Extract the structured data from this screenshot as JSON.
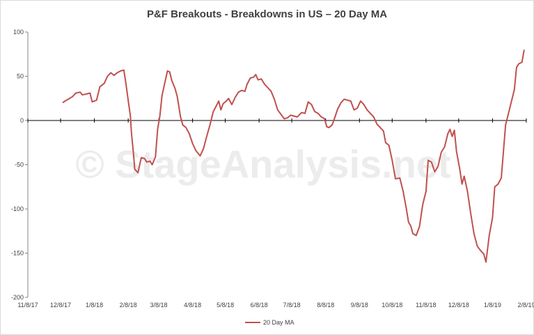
{
  "watermark": "© StageAnalysis.net",
  "chart_data": {
    "type": "line",
    "title": "P&F Breakouts - Breakdowns in US – 20 Day MA",
    "xlabel": "",
    "ylabel": "",
    "ylim": [
      -200,
      100
    ],
    "yticks": [
      100,
      50,
      0,
      -50,
      -100,
      -150,
      -200
    ],
    "xlim": [
      "2017-11-08",
      "2019-02-08"
    ],
    "xticks": [
      "11/8/17",
      "12/8/17",
      "1/8/18",
      "2/8/18",
      "3/8/18",
      "4/8/18",
      "5/8/18",
      "6/8/18",
      "7/8/18",
      "8/8/18",
      "9/8/18",
      "10/8/18",
      "11/8/18",
      "12/8/18",
      "1/8/19",
      "2/8/19"
    ],
    "grid": false,
    "legend": "bottom",
    "colors": {
      "series": "#c0504d",
      "axis": "#000000"
    },
    "series": [
      {
        "name": "20 Day MA",
        "points": [
          [
            "2017-12-10",
            20
          ],
          [
            "2017-12-12",
            22
          ],
          [
            "2017-12-15",
            24
          ],
          [
            "2017-12-19",
            27
          ],
          [
            "2017-12-22",
            31
          ],
          [
            "2017-12-26",
            32
          ],
          [
            "2017-12-28",
            29
          ],
          [
            "2018-01-01",
            30
          ],
          [
            "2018-01-04",
            31
          ],
          [
            "2018-01-06",
            21
          ],
          [
            "2018-01-10",
            23
          ],
          [
            "2018-01-13",
            38
          ],
          [
            "2018-01-17",
            42
          ],
          [
            "2018-01-20",
            50
          ],
          [
            "2018-01-23",
            54
          ],
          [
            "2018-01-26",
            51
          ],
          [
            "2018-01-29",
            54
          ],
          [
            "2018-02-01",
            56
          ],
          [
            "2018-02-04",
            57
          ],
          [
            "2018-02-06",
            41
          ],
          [
            "2018-02-08",
            23
          ],
          [
            "2018-02-10",
            5
          ],
          [
            "2018-02-11",
            -14
          ],
          [
            "2018-02-13",
            -40
          ],
          [
            "2018-02-14",
            -55
          ],
          [
            "2018-02-17",
            -59
          ],
          [
            "2018-02-20",
            -42
          ],
          [
            "2018-02-23",
            -43
          ],
          [
            "2018-02-25",
            -47
          ],
          [
            "2018-02-28",
            -46
          ],
          [
            "2018-03-02",
            -50
          ],
          [
            "2018-03-05",
            -41
          ],
          [
            "2018-03-07",
            -10
          ],
          [
            "2018-03-09",
            5
          ],
          [
            "2018-03-11",
            28
          ],
          [
            "2018-03-14",
            45
          ],
          [
            "2018-03-16",
            56
          ],
          [
            "2018-03-18",
            55
          ],
          [
            "2018-03-20",
            45
          ],
          [
            "2018-03-23",
            36
          ],
          [
            "2018-03-25",
            27
          ],
          [
            "2018-03-28",
            4
          ],
          [
            "2018-03-30",
            -5
          ],
          [
            "2018-04-02",
            -8
          ],
          [
            "2018-04-05",
            -15
          ],
          [
            "2018-04-08",
            -26
          ],
          [
            "2018-04-11",
            -34
          ],
          [
            "2018-04-15",
            -40
          ],
          [
            "2018-04-18",
            -32
          ],
          [
            "2018-04-21",
            -18
          ],
          [
            "2018-04-24",
            -5
          ],
          [
            "2018-04-27",
            10
          ],
          [
            "2018-04-30",
            17
          ],
          [
            "2018-05-02",
            22
          ],
          [
            "2018-05-04",
            12
          ],
          [
            "2018-05-06",
            19
          ],
          [
            "2018-05-09",
            22
          ],
          [
            "2018-05-11",
            25
          ],
          [
            "2018-05-14",
            18
          ],
          [
            "2018-05-17",
            26
          ],
          [
            "2018-05-20",
            32
          ],
          [
            "2018-05-23",
            34
          ],
          [
            "2018-05-26",
            33
          ],
          [
            "2018-05-28",
            41
          ],
          [
            "2018-05-31",
            48
          ],
          [
            "2018-06-03",
            49
          ],
          [
            "2018-06-05",
            52
          ],
          [
            "2018-06-07",
            46
          ],
          [
            "2018-06-10",
            47
          ],
          [
            "2018-06-13",
            41
          ],
          [
            "2018-06-16",
            37
          ],
          [
            "2018-06-19",
            33
          ],
          [
            "2018-06-22",
            24
          ],
          [
            "2018-06-25",
            12
          ],
          [
            "2018-06-28",
            7
          ],
          [
            "2018-07-01",
            2
          ],
          [
            "2018-07-04",
            3
          ],
          [
            "2018-07-07",
            6
          ],
          [
            "2018-07-10",
            5
          ],
          [
            "2018-07-13",
            4
          ],
          [
            "2018-07-17",
            9
          ],
          [
            "2018-07-20",
            8
          ],
          [
            "2018-07-23",
            21
          ],
          [
            "2018-07-26",
            18
          ],
          [
            "2018-07-29",
            10
          ],
          [
            "2018-08-01",
            8
          ],
          [
            "2018-08-04",
            4
          ],
          [
            "2018-08-07",
            2
          ],
          [
            "2018-08-09",
            -7
          ],
          [
            "2018-08-11",
            -8
          ],
          [
            "2018-08-14",
            -5
          ],
          [
            "2018-08-16",
            2
          ],
          [
            "2018-08-19",
            13
          ],
          [
            "2018-08-22",
            20
          ],
          [
            "2018-08-25",
            24
          ],
          [
            "2018-08-28",
            23
          ],
          [
            "2018-08-31",
            22
          ],
          [
            "2018-09-03",
            12
          ],
          [
            "2018-09-06",
            14
          ],
          [
            "2018-09-09",
            22
          ],
          [
            "2018-09-12",
            18
          ],
          [
            "2018-09-15",
            12
          ],
          [
            "2018-09-18",
            8
          ],
          [
            "2018-09-21",
            4
          ],
          [
            "2018-09-24",
            -4
          ],
          [
            "2018-09-27",
            -8
          ],
          [
            "2018-09-30",
            -12
          ],
          [
            "2018-10-02",
            -25
          ],
          [
            "2018-10-05",
            -28
          ],
          [
            "2018-10-08",
            -45
          ],
          [
            "2018-10-11",
            -66
          ],
          [
            "2018-10-15",
            -65
          ],
          [
            "2018-10-18",
            -80
          ],
          [
            "2018-10-21",
            -100
          ],
          [
            "2018-10-23",
            -115
          ],
          [
            "2018-10-25",
            -119
          ],
          [
            "2018-10-27",
            -128
          ],
          [
            "2018-10-30",
            -130
          ],
          [
            "2018-11-02",
            -120
          ],
          [
            "2018-11-05",
            -95
          ],
          [
            "2018-11-08",
            -80
          ],
          [
            "2018-11-10",
            -45
          ],
          [
            "2018-11-13",
            -47
          ],
          [
            "2018-11-16",
            -58
          ],
          [
            "2018-11-19",
            -52
          ],
          [
            "2018-11-22",
            -36
          ],
          [
            "2018-11-25",
            -30
          ],
          [
            "2018-11-28",
            -15
          ],
          [
            "2018-11-30",
            -10
          ],
          [
            "2018-12-02",
            -18
          ],
          [
            "2018-12-04",
            -11
          ],
          [
            "2018-12-06",
            -35
          ],
          [
            "2018-12-09",
            -55
          ],
          [
            "2018-12-11",
            -72
          ],
          [
            "2018-12-13",
            -63
          ],
          [
            "2018-12-16",
            -80
          ],
          [
            "2018-12-19",
            -105
          ],
          [
            "2018-12-22",
            -128
          ],
          [
            "2018-12-25",
            -142
          ],
          [
            "2018-12-28",
            -147
          ],
          [
            "2018-12-31",
            -151
          ],
          [
            "2019-01-02",
            -160
          ],
          [
            "2019-01-05",
            -130
          ],
          [
            "2019-01-08",
            -110
          ],
          [
            "2019-01-10",
            -75
          ],
          [
            "2019-01-13",
            -72
          ],
          [
            "2019-01-16",
            -65
          ],
          [
            "2019-01-18",
            -35
          ],
          [
            "2019-01-20",
            -5
          ],
          [
            "2019-01-22",
            5
          ],
          [
            "2019-01-25",
            20
          ],
          [
            "2019-01-28",
            35
          ],
          [
            "2019-01-30",
            60
          ],
          [
            "2019-02-01",
            64
          ],
          [
            "2019-02-04",
            66
          ],
          [
            "2019-02-06",
            80
          ]
        ]
      }
    ]
  }
}
